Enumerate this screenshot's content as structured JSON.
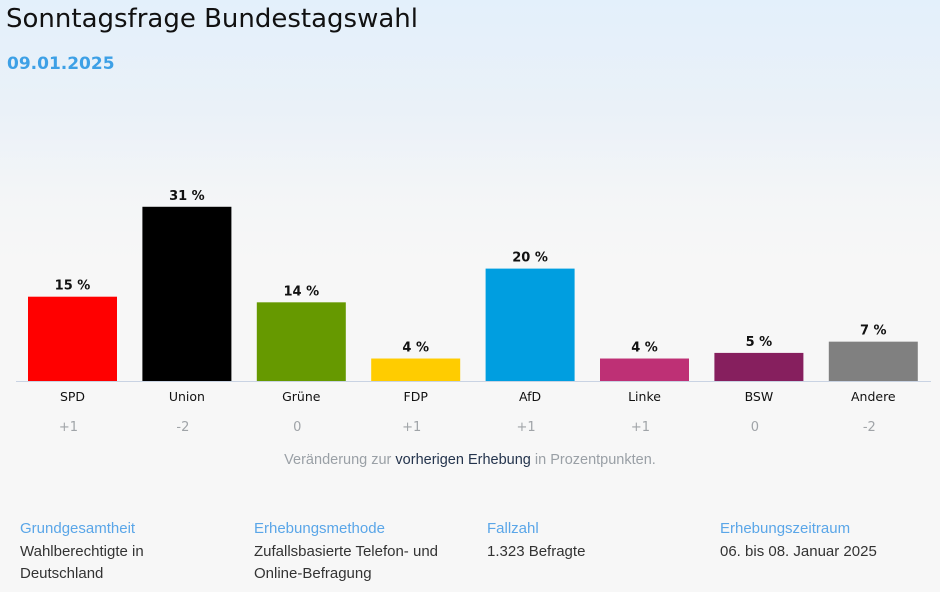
{
  "header": {
    "title": "Sonntagsfrage Bundestagswahl",
    "date": "09.01.2025"
  },
  "chart_data": {
    "type": "bar",
    "title": "Sonntagsfrage Bundestagswahl",
    "subtitle": "09.01.2025",
    "categories": [
      "SPD",
      "Union",
      "Grüne",
      "FDP",
      "AfD",
      "Linke",
      "BSW",
      "Andere"
    ],
    "values": [
      15,
      31,
      14,
      4,
      20,
      4,
      5,
      7
    ],
    "value_labels": [
      "15 %",
      "31 %",
      "14 %",
      "4 %",
      "20 %",
      "4 %",
      "5 %",
      "7 %"
    ],
    "changes": [
      "+1",
      "-2",
      "0",
      "+1",
      "+1",
      "+1",
      "0",
      "-2"
    ],
    "colors": [
      "#ff0000",
      "#000000",
      "#669900",
      "#ffcc00",
      "#009ee0",
      "#be3075",
      "#861f5e",
      "#808080"
    ],
    "unit": "%",
    "xlabel": "",
    "ylabel": "",
    "ylim": [
      0,
      33
    ],
    "grid": false,
    "legend": "none"
  },
  "note": {
    "prefix": "Veränderung zur ",
    "link": "vorherigen Erhebung",
    "suffix": " in Prozentpunkten."
  },
  "info": [
    {
      "heading": "Grundgesamtheit",
      "lines": [
        "Wahlberechtigte in",
        "Deutschland"
      ]
    },
    {
      "heading": "Erhebungsmethode",
      "lines": [
        "Zufallsbasierte Telefon- und",
        "Online-Befragung"
      ]
    },
    {
      "heading": "Fallzahl",
      "lines": [
        "1.323 Befragte"
      ]
    },
    {
      "heading": "Erhebungszeitraum",
      "lines": [
        "06. bis 08. Januar 2025"
      ]
    }
  ],
  "colors": {
    "accent": "#3da0e6",
    "info_heading": "#5aa6e8",
    "link": "#24344d",
    "muted": "#9aa0a6"
  }
}
